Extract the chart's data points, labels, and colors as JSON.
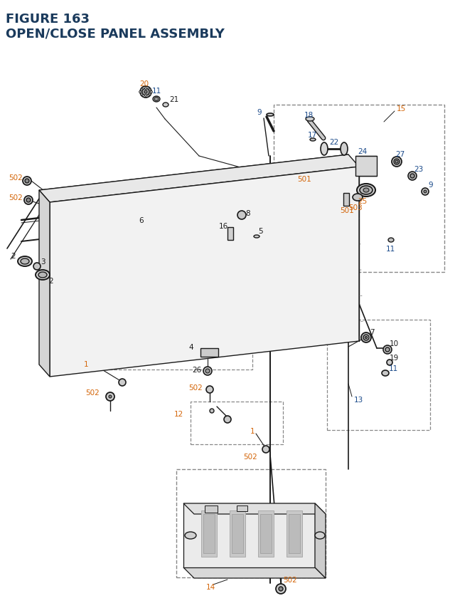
{
  "title_line1": "FIGURE 163",
  "title_line2": "OPEN/CLOSE PANEL ASSEMBLY",
  "bg_color": "#ffffff",
  "title_color": "#1a3a5c",
  "blue": "#1a4a8a",
  "orange": "#d4660a",
  "black": "#1a1a1a",
  "gray": "#666666",
  "lgray": "#aaaaaa",
  "part_fill": "#d8d8d8",
  "part_fill2": "#eeeeee"
}
